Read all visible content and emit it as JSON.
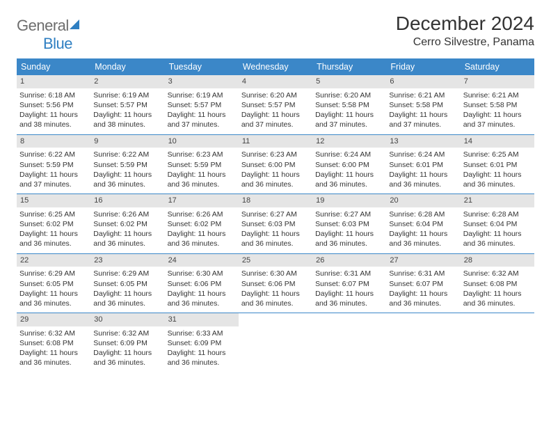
{
  "logo": {
    "word1": "General",
    "word2": "Blue",
    "word1_color": "#6d6d6d",
    "word2_color": "#2f7fc2"
  },
  "title": "December 2024",
  "location": "Cerro Silvestre, Panama",
  "colors": {
    "header_bg": "#3b87c8",
    "header_text": "#ffffff",
    "daynum_bg": "#e5e5e5",
    "body_text": "#333333",
    "week_divider": "#3b87c8"
  },
  "day_names": [
    "Sunday",
    "Monday",
    "Tuesday",
    "Wednesday",
    "Thursday",
    "Friday",
    "Saturday"
  ],
  "weeks": [
    [
      {
        "n": "1",
        "sr": "Sunrise: 6:18 AM",
        "ss": "Sunset: 5:56 PM",
        "d1": "Daylight: 11 hours",
        "d2": "and 38 minutes."
      },
      {
        "n": "2",
        "sr": "Sunrise: 6:19 AM",
        "ss": "Sunset: 5:57 PM",
        "d1": "Daylight: 11 hours",
        "d2": "and 38 minutes."
      },
      {
        "n": "3",
        "sr": "Sunrise: 6:19 AM",
        "ss": "Sunset: 5:57 PM",
        "d1": "Daylight: 11 hours",
        "d2": "and 37 minutes."
      },
      {
        "n": "4",
        "sr": "Sunrise: 6:20 AM",
        "ss": "Sunset: 5:57 PM",
        "d1": "Daylight: 11 hours",
        "d2": "and 37 minutes."
      },
      {
        "n": "5",
        "sr": "Sunrise: 6:20 AM",
        "ss": "Sunset: 5:58 PM",
        "d1": "Daylight: 11 hours",
        "d2": "and 37 minutes."
      },
      {
        "n": "6",
        "sr": "Sunrise: 6:21 AM",
        "ss": "Sunset: 5:58 PM",
        "d1": "Daylight: 11 hours",
        "d2": "and 37 minutes."
      },
      {
        "n": "7",
        "sr": "Sunrise: 6:21 AM",
        "ss": "Sunset: 5:58 PM",
        "d1": "Daylight: 11 hours",
        "d2": "and 37 minutes."
      }
    ],
    [
      {
        "n": "8",
        "sr": "Sunrise: 6:22 AM",
        "ss": "Sunset: 5:59 PM",
        "d1": "Daylight: 11 hours",
        "d2": "and 37 minutes."
      },
      {
        "n": "9",
        "sr": "Sunrise: 6:22 AM",
        "ss": "Sunset: 5:59 PM",
        "d1": "Daylight: 11 hours",
        "d2": "and 36 minutes."
      },
      {
        "n": "10",
        "sr": "Sunrise: 6:23 AM",
        "ss": "Sunset: 5:59 PM",
        "d1": "Daylight: 11 hours",
        "d2": "and 36 minutes."
      },
      {
        "n": "11",
        "sr": "Sunrise: 6:23 AM",
        "ss": "Sunset: 6:00 PM",
        "d1": "Daylight: 11 hours",
        "d2": "and 36 minutes."
      },
      {
        "n": "12",
        "sr": "Sunrise: 6:24 AM",
        "ss": "Sunset: 6:00 PM",
        "d1": "Daylight: 11 hours",
        "d2": "and 36 minutes."
      },
      {
        "n": "13",
        "sr": "Sunrise: 6:24 AM",
        "ss": "Sunset: 6:01 PM",
        "d1": "Daylight: 11 hours",
        "d2": "and 36 minutes."
      },
      {
        "n": "14",
        "sr": "Sunrise: 6:25 AM",
        "ss": "Sunset: 6:01 PM",
        "d1": "Daylight: 11 hours",
        "d2": "and 36 minutes."
      }
    ],
    [
      {
        "n": "15",
        "sr": "Sunrise: 6:25 AM",
        "ss": "Sunset: 6:02 PM",
        "d1": "Daylight: 11 hours",
        "d2": "and 36 minutes."
      },
      {
        "n": "16",
        "sr": "Sunrise: 6:26 AM",
        "ss": "Sunset: 6:02 PM",
        "d1": "Daylight: 11 hours",
        "d2": "and 36 minutes."
      },
      {
        "n": "17",
        "sr": "Sunrise: 6:26 AM",
        "ss": "Sunset: 6:02 PM",
        "d1": "Daylight: 11 hours",
        "d2": "and 36 minutes."
      },
      {
        "n": "18",
        "sr": "Sunrise: 6:27 AM",
        "ss": "Sunset: 6:03 PM",
        "d1": "Daylight: 11 hours",
        "d2": "and 36 minutes."
      },
      {
        "n": "19",
        "sr": "Sunrise: 6:27 AM",
        "ss": "Sunset: 6:03 PM",
        "d1": "Daylight: 11 hours",
        "d2": "and 36 minutes."
      },
      {
        "n": "20",
        "sr": "Sunrise: 6:28 AM",
        "ss": "Sunset: 6:04 PM",
        "d1": "Daylight: 11 hours",
        "d2": "and 36 minutes."
      },
      {
        "n": "21",
        "sr": "Sunrise: 6:28 AM",
        "ss": "Sunset: 6:04 PM",
        "d1": "Daylight: 11 hours",
        "d2": "and 36 minutes."
      }
    ],
    [
      {
        "n": "22",
        "sr": "Sunrise: 6:29 AM",
        "ss": "Sunset: 6:05 PM",
        "d1": "Daylight: 11 hours",
        "d2": "and 36 minutes."
      },
      {
        "n": "23",
        "sr": "Sunrise: 6:29 AM",
        "ss": "Sunset: 6:05 PM",
        "d1": "Daylight: 11 hours",
        "d2": "and 36 minutes."
      },
      {
        "n": "24",
        "sr": "Sunrise: 6:30 AM",
        "ss": "Sunset: 6:06 PM",
        "d1": "Daylight: 11 hours",
        "d2": "and 36 minutes."
      },
      {
        "n": "25",
        "sr": "Sunrise: 6:30 AM",
        "ss": "Sunset: 6:06 PM",
        "d1": "Daylight: 11 hours",
        "d2": "and 36 minutes."
      },
      {
        "n": "26",
        "sr": "Sunrise: 6:31 AM",
        "ss": "Sunset: 6:07 PM",
        "d1": "Daylight: 11 hours",
        "d2": "and 36 minutes."
      },
      {
        "n": "27",
        "sr": "Sunrise: 6:31 AM",
        "ss": "Sunset: 6:07 PM",
        "d1": "Daylight: 11 hours",
        "d2": "and 36 minutes."
      },
      {
        "n": "28",
        "sr": "Sunrise: 6:32 AM",
        "ss": "Sunset: 6:08 PM",
        "d1": "Daylight: 11 hours",
        "d2": "and 36 minutes."
      }
    ],
    [
      {
        "n": "29",
        "sr": "Sunrise: 6:32 AM",
        "ss": "Sunset: 6:08 PM",
        "d1": "Daylight: 11 hours",
        "d2": "and 36 minutes."
      },
      {
        "n": "30",
        "sr": "Sunrise: 6:32 AM",
        "ss": "Sunset: 6:09 PM",
        "d1": "Daylight: 11 hours",
        "d2": "and 36 minutes."
      },
      {
        "n": "31",
        "sr": "Sunrise: 6:33 AM",
        "ss": "Sunset: 6:09 PM",
        "d1": "Daylight: 11 hours",
        "d2": "and 36 minutes."
      },
      null,
      null,
      null,
      null
    ]
  ]
}
